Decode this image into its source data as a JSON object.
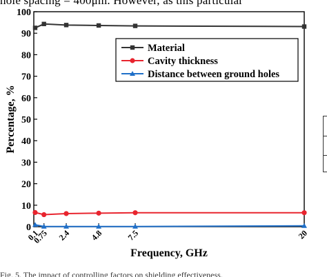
{
  "page": {
    "top_text": "hole spacing = 400μm. However, as this particular",
    "caption": "Fig. 5.  The impact of controlling factors on shielding effectiveness."
  },
  "chart_data": {
    "type": "line",
    "title": "",
    "xlabel": "Frequency, GHz",
    "ylabel": "Percentage, %",
    "ylim": [
      0,
      100
    ],
    "xlim": [
      0,
      20
    ],
    "yticks": [
      0,
      10,
      20,
      30,
      40,
      50,
      60,
      70,
      80,
      90,
      100
    ],
    "xticks": [
      {
        "value": 0.1,
        "label": "0.1"
      },
      {
        "value": 0.75,
        "label": "0.75"
      },
      {
        "value": 2.4,
        "label": "2.4"
      },
      {
        "value": 4.8,
        "label": "4.8"
      },
      {
        "value": 7.5,
        "label": "7.5"
      },
      {
        "value": 20,
        "label": "20"
      }
    ],
    "x": [
      0.1,
      0.75,
      2.4,
      4.8,
      7.5,
      20
    ],
    "series": [
      {
        "name": "Material",
        "color": "#333333",
        "marker": "square",
        "values": [
          92.5,
          94.3,
          93.8,
          93.6,
          93.4,
          93.1
        ]
      },
      {
        "name": "Cavity thickness",
        "color": "#e8242e",
        "marker": "circle",
        "values": [
          6.6,
          5.6,
          6.1,
          6.3,
          6.5,
          6.5
        ]
      },
      {
        "name": "Distance between ground holes",
        "color": "#1f6fc8",
        "marker": "triangle",
        "values": [
          0.9,
          0.1,
          0.1,
          0.1,
          0.1,
          0.4
        ]
      }
    ],
    "grid": false,
    "legend_position": "top-right"
  }
}
